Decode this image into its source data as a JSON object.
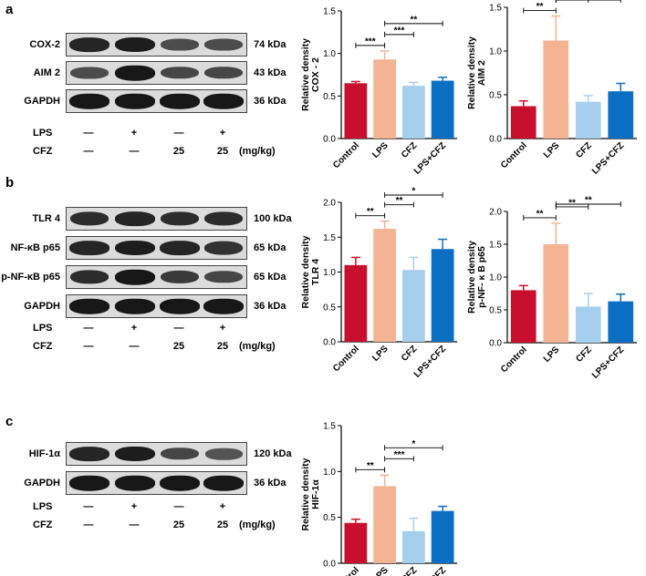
{
  "panels": [
    {
      "letter": "a",
      "blots": [
        {
          "protein": "COX-2",
          "kda": "74 kDa",
          "intensity": [
            0.85,
            0.9,
            0.55,
            0.55
          ]
        },
        {
          "protein": "AIM 2",
          "kda": "43 kDa",
          "intensity": [
            0.55,
            0.95,
            0.6,
            0.6
          ]
        },
        {
          "protein": "GAPDH",
          "kda": "36 kDa",
          "intensity": [
            0.95,
            0.95,
            0.95,
            0.95
          ]
        }
      ],
      "conditions": {
        "lps_label": "LPS",
        "cfz_label": "CFZ",
        "lps": [
          "—",
          "+",
          "—",
          "+"
        ],
        "cfz": [
          "—",
          "—",
          "25",
          "25"
        ],
        "unit": "(mg/kg)"
      }
    },
    {
      "letter": "b",
      "blots": [
        {
          "protein": "TLR 4",
          "kda": "100 kDa",
          "intensity": [
            0.8,
            0.85,
            0.8,
            0.8
          ]
        },
        {
          "protein": "NF-κB p65",
          "kda": "65  kDa",
          "intensity": [
            0.85,
            0.9,
            0.85,
            0.75
          ]
        },
        {
          "protein": "p-NF-κB p65",
          "kda": "65  kDa",
          "intensity": [
            0.8,
            0.95,
            0.7,
            0.6
          ]
        },
        {
          "protein": "GAPDH",
          "kda": "36  kDa",
          "intensity": [
            0.95,
            0.95,
            0.95,
            0.95
          ]
        }
      ],
      "conditions": {
        "lps_label": "LPS",
        "cfz_label": "CFZ",
        "lps": [
          "—",
          "+",
          "—",
          "+"
        ],
        "cfz": [
          "—",
          "—",
          "25",
          "25"
        ],
        "unit": "(mg/kg)"
      }
    },
    {
      "letter": "c",
      "blots": [
        {
          "protein": "HIF-1α",
          "kda": "120 kDa",
          "intensity": [
            0.85,
            0.9,
            0.6,
            0.5
          ]
        },
        {
          "protein": "GAPDH",
          "kda": "36  kDa",
          "intensity": [
            0.95,
            0.95,
            0.95,
            0.95
          ]
        }
      ],
      "conditions": {
        "lps_label": "LPS",
        "cfz_label": "CFZ",
        "lps": [
          "—",
          "+",
          "—",
          "+"
        ],
        "cfz": [
          "—",
          "—",
          "25",
          "25"
        ],
        "unit": "(mg/kg)"
      }
    }
  ],
  "colors": {
    "Control": "#c8102e",
    "LPS": "#f4b393",
    "CFZ": "#a6cfee",
    "LPS+CFZ": "#0a6fc2"
  },
  "chart_data": [
    {
      "type": "bar",
      "categories": [
        "Control",
        "LPS",
        "CFZ",
        "LPS+CFZ"
      ],
      "values": [
        0.65,
        0.93,
        0.62,
        0.68
      ],
      "errors": [
        0.02,
        0.1,
        0.04,
        0.04
      ],
      "ylabel": "Relative density\nCOX - 2",
      "ylim": [
        0,
        1.5
      ],
      "yticks": [
        "0.0",
        "0.5",
        "1.0",
        "1.5"
      ],
      "sig": [
        {
          "a": 0,
          "b": 1,
          "label": "***",
          "level": 0
        },
        {
          "a": 1,
          "b": 2,
          "label": "***",
          "level": 1
        },
        {
          "a": 1,
          "b": 3,
          "label": "**",
          "level": 2
        }
      ]
    },
    {
      "type": "bar",
      "categories": [
        "Control",
        "LPS",
        "CFZ",
        "LPS+CFZ"
      ],
      "values": [
        0.37,
        1.12,
        0.42,
        0.54
      ],
      "errors": [
        0.06,
        0.28,
        0.07,
        0.09
      ],
      "ylabel": "Relative density\nAIM 2",
      "ylim": [
        0,
        1.5
      ],
      "yticks": [
        "0.0",
        "0.5",
        "1.0",
        "1.5"
      ],
      "sig": [
        {
          "a": 0,
          "b": 1,
          "label": "**",
          "level": 0
        },
        {
          "a": 1,
          "b": 2,
          "label": "**",
          "level": 1
        },
        {
          "a": 1,
          "b": 3,
          "label": "**",
          "level": 2
        }
      ]
    },
    {
      "type": "bar",
      "categories": [
        "Control",
        "LPS",
        "CFZ",
        "LPS+CFZ"
      ],
      "values": [
        1.1,
        1.62,
        1.03,
        1.33
      ],
      "errors": [
        0.11,
        0.11,
        0.18,
        0.14
      ],
      "ylabel": "Relative density\nTLR 4",
      "ylim": [
        0,
        2.0
      ],
      "yticks": [
        "0.0",
        "0.5",
        "1.0",
        "1.5",
        "2.0"
      ],
      "sig": [
        {
          "a": 0,
          "b": 1,
          "label": "**",
          "level": 0
        },
        {
          "a": 1,
          "b": 2,
          "label": "**",
          "level": 1
        },
        {
          "a": 1,
          "b": 3,
          "label": "*",
          "level": 2
        }
      ]
    },
    {
      "type": "bar",
      "categories": [
        "Control",
        "LPS",
        "CFZ",
        "LPS+CFZ"
      ],
      "values": [
        0.8,
        1.5,
        0.55,
        0.63
      ],
      "errors": [
        0.07,
        0.32,
        0.2,
        0.11
      ],
      "ylabel": "Relative density\np-NF- κ B p65",
      "ylim": [
        0,
        2.0
      ],
      "yticks": [
        "0.0",
        "0.5",
        "1.0",
        "1.5",
        "2.0"
      ],
      "sig": [
        {
          "a": 0,
          "b": 1,
          "label": "**",
          "level": 0
        },
        {
          "a": 1,
          "b": 2,
          "label": "**",
          "level": 1
        },
        {
          "a": 1,
          "b": 3,
          "label": "**",
          "level": 2
        }
      ]
    },
    {
      "type": "bar",
      "categories": [
        "Control",
        "LPS",
        "CFZ",
        "LPS+CFZ"
      ],
      "values": [
        0.44,
        0.84,
        0.35,
        0.57
      ],
      "errors": [
        0.04,
        0.12,
        0.14,
        0.05
      ],
      "ylabel": "Relative density\nHIF-1α",
      "ylim": [
        0,
        1.5
      ],
      "yticks": [
        "0.0",
        "0.5",
        "1.0",
        "1.5"
      ],
      "sig": [
        {
          "a": 0,
          "b": 1,
          "label": "**",
          "level": 0
        },
        {
          "a": 1,
          "b": 2,
          "label": "***",
          "level": 1
        },
        {
          "a": 1,
          "b": 3,
          "label": "*",
          "level": 2
        }
      ]
    }
  ]
}
